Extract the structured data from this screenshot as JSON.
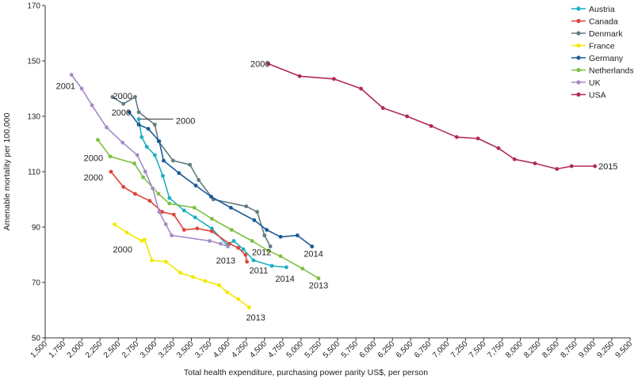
{
  "chart_data": {
    "type": "line",
    "xlabel": "Total health expenditure, purchasing power parity US$, per person",
    "ylabel": "Amenable mortality per 100,000",
    "xlim": [
      1500,
      9500
    ],
    "ylim": [
      50,
      170
    ],
    "xticks": [
      1500,
      1750,
      2000,
      2250,
      2500,
      2750,
      3000,
      3250,
      3500,
      3750,
      4000,
      4250,
      4500,
      4750,
      5000,
      5250,
      5500,
      5750,
      6000,
      6250,
      6500,
      6750,
      7000,
      7250,
      7500,
      7750,
      8000,
      8250,
      8500,
      8750,
      9000,
      9250,
      9500
    ],
    "xtick_labels": [
      "1,500",
      "1,750",
      "2,000",
      "2,250",
      "2,500",
      "2,750",
      "3,000",
      "3,250",
      "3,500",
      "3,750",
      "4,000",
      "4,250",
      "4,500",
      "4,750",
      "5,000",
      "5,250",
      "5,500",
      "5,750",
      "6,000",
      "6,250",
      "6,500",
      "6,750",
      "7,000",
      "7,250",
      "7,500",
      "7,750",
      "8,000",
      "8,250",
      "8,500",
      "8,750",
      "9,000",
      "9,250",
      "9,500"
    ],
    "yticks": [
      50,
      70,
      90,
      110,
      130,
      150,
      170
    ],
    "ytick_labels": [
      "50",
      "70",
      "90",
      "110",
      "130",
      "150",
      "170"
    ],
    "grid": false,
    "legend_position": "top-right",
    "series": [
      {
        "name": "Austria",
        "color": "#1aafc0",
        "x": [
          2780,
          2820,
          2890,
          3000,
          3110,
          3200,
          3400,
          3550,
          3780,
          3990,
          4080,
          4210,
          4350,
          4600,
          4800
        ],
        "y": [
          129,
          122.5,
          119,
          116,
          108.5,
          100.5,
          96,
          93.5,
          89.5,
          83.5,
          85,
          82,
          78,
          76,
          75.5
        ]
      },
      {
        "name": "Canada",
        "color": "#e0443a",
        "x": [
          2400,
          2570,
          2730,
          2930,
          3100,
          3260,
          3400,
          3580,
          3780,
          4020,
          4140,
          4240,
          4260
        ],
        "y": [
          110,
          104.5,
          102,
          99.5,
          95.5,
          94.5,
          89,
          89.5,
          88.5,
          84,
          82.5,
          80,
          77.5
        ]
      },
      {
        "name": "Denmark",
        "color": "#5f7b80",
        "x": [
          2420,
          2570,
          2730,
          2780,
          3000,
          3050,
          3250,
          3480,
          3600,
          3800,
          4250,
          4400,
          4500,
          4580
        ],
        "y": [
          137,
          134.5,
          137,
          131.5,
          127,
          121,
          114,
          112.5,
          107,
          100,
          97.5,
          95.5,
          87,
          83
        ]
      },
      {
        "name": "France",
        "color": "#f2e800",
        "x": [
          2450,
          2620,
          2820,
          2860,
          2960,
          3150,
          3350,
          3520,
          3690,
          3880,
          3990,
          4140,
          4290
        ],
        "y": [
          91,
          88,
          85,
          85.5,
          78,
          77.5,
          73.5,
          72,
          70.5,
          69,
          66.5,
          64,
          61
        ]
      },
      {
        "name": "Germany",
        "color": "#1a5a96",
        "x": [
          2650,
          2780,
          2910,
          3060,
          3120,
          3330,
          3560,
          3770,
          4040,
          4360,
          4530,
          4720,
          4950,
          5150
        ],
        "y": [
          131.5,
          127,
          125.5,
          121,
          114,
          109.5,
          105,
          101,
          97,
          92.5,
          89,
          86.5,
          87,
          83
        ]
      },
      {
        "name": "Netherlands",
        "color": "#7dbf43",
        "x": [
          2220,
          2390,
          2720,
          2840,
          3050,
          3200,
          3540,
          3780,
          4050,
          4330,
          4550,
          4720,
          5020,
          5240
        ],
        "y": [
          121.5,
          115.5,
          113,
          108,
          102,
          98.5,
          97,
          93,
          89,
          85,
          81.5,
          79.5,
          75,
          71.5
        ]
      },
      {
        "name": "UK",
        "color": "#a58ac5",
        "x": [
          1860,
          2000,
          2140,
          2340,
          2560,
          2760,
          2870,
          2970,
          3060,
          3150,
          3230,
          3750,
          3900,
          4000
        ],
        "y": [
          145,
          140,
          134,
          126,
          120.5,
          116,
          110,
          104,
          95.5,
          91,
          87,
          85,
          84,
          83
        ]
      },
      {
        "name": "USA",
        "color": "#b0285a",
        "x": [
          4550,
          4980,
          5450,
          5820,
          6120,
          6450,
          6780,
          7130,
          7420,
          7700,
          7920,
          8200,
          8500,
          8700,
          9020
        ],
        "y": [
          149,
          144.5,
          143.5,
          140,
          133,
          130,
          126.5,
          122.5,
          122,
          118.5,
          114.5,
          113,
          111,
          112,
          112
        ]
      }
    ],
    "annotations": [
      {
        "text": "2001",
        "x": 1780,
        "y": 141
      },
      {
        "text": "2000",
        "x": 2560,
        "y": 137.5
      },
      {
        "text": "2000",
        "x": 2540,
        "y": 131.5
      },
      {
        "text": "2000",
        "x": 3420,
        "y": 128.5
      },
      {
        "text": "2000",
        "x": 2160,
        "y": 115
      },
      {
        "text": "2000",
        "x": 2160,
        "y": 108
      },
      {
        "text": "2000",
        "x": 2560,
        "y": 82
      },
      {
        "text": "2013",
        "x": 3970,
        "y": 78
      },
      {
        "text": "2012",
        "x": 4460,
        "y": 81
      },
      {
        "text": "2011",
        "x": 4420,
        "y": 74.5
      },
      {
        "text": "2014",
        "x": 4780,
        "y": 71.5
      },
      {
        "text": "2013",
        "x": 5240,
        "y": 69
      },
      {
        "text": "2014",
        "x": 5170,
        "y": 80.5
      },
      {
        "text": "2013",
        "x": 4380,
        "y": 57.5
      },
      {
        "text": "2000",
        "x": 4440,
        "y": 149
      },
      {
        "text": "2015",
        "x": 9200,
        "y": 112
      }
    ]
  }
}
